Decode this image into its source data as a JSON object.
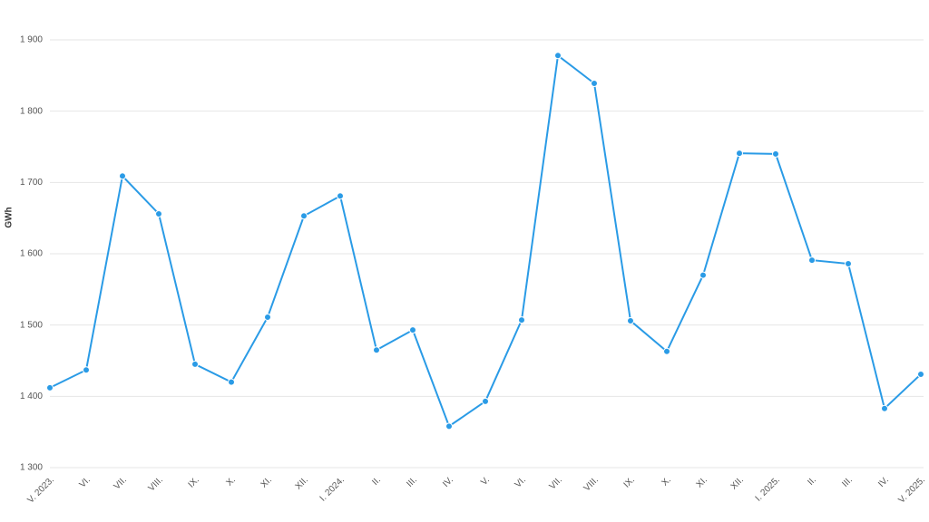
{
  "chart_data": {
    "type": "line",
    "y_label": "GWh",
    "categories": [
      "V. 2023.",
      "VI.",
      "VII.",
      "VIII.",
      "IX.",
      "X.",
      "XI.",
      "XII.",
      "I. 2024.",
      "II.",
      "III.",
      "IV.",
      "V.",
      "VI.",
      "VII.",
      "VIII.",
      "IX.",
      "X.",
      "XI.",
      "XII.",
      "I. 2025.",
      "II.",
      "III.",
      "IV.",
      "V. 2025."
    ],
    "values": [
      1412,
      1437,
      1709,
      1656,
      1445,
      1420,
      1511,
      1653,
      1681,
      1465,
      1493,
      1358,
      1393,
      1507,
      1878,
      1839,
      1506,
      1463,
      1570,
      1741,
      1740,
      1591,
      1586,
      1383,
      1431
    ],
    "color": "#2a9be6",
    "ylim": [
      1300,
      1900
    ],
    "yticks": [
      {
        "value": 1300,
        "label": "1 300"
      },
      {
        "value": 1400,
        "label": "1 400"
      },
      {
        "value": 1500,
        "label": "1 500"
      },
      {
        "value": 1600,
        "label": "1 600"
      },
      {
        "value": 1700,
        "label": "1 700"
      },
      {
        "value": 1800,
        "label": "1 800"
      },
      {
        "value": 1900,
        "label": "1 900"
      }
    ],
    "grid": true
  }
}
